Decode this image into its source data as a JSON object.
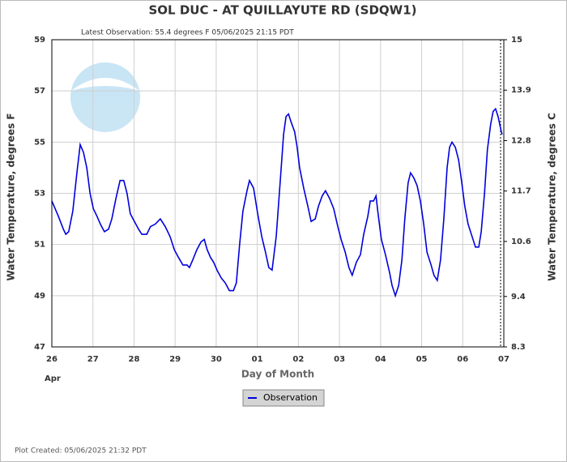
{
  "chart_data": {
    "type": "line",
    "title": "SOL DUC - AT QUILLAYUTE RD  (SDQW1)",
    "subtitle": "Latest Observation: 55.4 degrees F 05/06/2025 21:15 PDT",
    "ylabel": "Water Temperature, degrees F",
    "y2label": "Water Temperature, degrees C",
    "xlabel": "Day of Month",
    "x_annotation": "Apr",
    "footer": "Plot Created: 05/06/2025 21:32 PDT",
    "grid": true,
    "xlim": [
      0,
      11
    ],
    "xticks": [
      {
        "value": 0,
        "label": "26"
      },
      {
        "value": 1,
        "label": "27"
      },
      {
        "value": 2,
        "label": "28"
      },
      {
        "value": 3,
        "label": "29"
      },
      {
        "value": 4,
        "label": "30"
      },
      {
        "value": 5,
        "label": "01"
      },
      {
        "value": 6,
        "label": "02"
      },
      {
        "value": 7,
        "label": "03"
      },
      {
        "value": 8,
        "label": "04"
      },
      {
        "value": 9,
        "label": "05"
      },
      {
        "value": 10,
        "label": "06"
      },
      {
        "value": 11,
        "label": "07"
      }
    ],
    "ylim": [
      47,
      59
    ],
    "yticks": [
      47,
      49,
      51,
      53,
      55,
      57,
      59
    ],
    "y2lim": [
      8.3,
      15
    ],
    "y2ticks": [
      8.3,
      9.4,
      10.6,
      11.7,
      12.8,
      13.9,
      15
    ],
    "x": [
      0,
      0.16,
      0.28,
      0.34,
      0.41,
      0.51,
      0.61,
      0.69,
      0.77,
      0.85,
      0.93,
      1.01,
      1.1,
      1.18,
      1.28,
      1.38,
      1.46,
      1.56,
      1.66,
      1.75,
      1.83,
      1.91,
      2.01,
      2.11,
      2.19,
      2.31,
      2.4,
      2.52,
      2.64,
      2.76,
      2.88,
      2.98,
      3.08,
      3.19,
      3.29,
      3.35,
      3.43,
      3.53,
      3.63,
      3.71,
      3.78,
      3.86,
      3.94,
      4.02,
      4.12,
      4.22,
      4.32,
      4.42,
      4.49,
      4.57,
      4.65,
      4.75,
      4.81,
      4.91,
      5.01,
      5.11,
      5.2,
      5.28,
      5.36,
      5.46,
      5.56,
      5.64,
      5.7,
      5.76,
      5.82,
      5.91,
      5.97,
      6.03,
      6.13,
      6.23,
      6.31,
      6.41,
      6.49,
      6.58,
      6.66,
      6.76,
      6.86,
      6.96,
      7.04,
      7.14,
      7.23,
      7.31,
      7.41,
      7.51,
      7.59,
      7.69,
      7.75,
      7.83,
      7.89,
      7.94,
      8.02,
      8.12,
      8.22,
      8.28,
      8.36,
      8.44,
      8.52,
      8.59,
      8.67,
      8.73,
      8.81,
      8.89,
      8.97,
      9.05,
      9.13,
      9.23,
      9.3,
      9.38,
      9.46,
      9.54,
      9.62,
      9.68,
      9.74,
      9.82,
      9.9,
      9.97,
      10.05,
      10.13,
      10.23,
      10.31,
      10.39,
      10.45,
      10.53,
      10.6,
      10.68,
      10.74,
      10.8,
      10.86,
      10.94,
      10.96
    ],
    "series": [
      {
        "name": "Observation",
        "color": "#0000dd",
        "values": [
          52.7,
          52.1,
          51.6,
          51.4,
          51.5,
          52.3,
          53.8,
          54.9,
          54.6,
          54,
          53,
          52.4,
          52.1,
          51.8,
          51.5,
          51.6,
          52,
          52.8,
          53.5,
          53.5,
          53,
          52.2,
          51.9,
          51.6,
          51.4,
          51.4,
          51.7,
          51.8,
          52,
          51.7,
          51.3,
          50.8,
          50.5,
          50.2,
          50.2,
          50.1,
          50.4,
          50.8,
          51.1,
          51.2,
          50.8,
          50.5,
          50.3,
          50,
          49.7,
          49.5,
          49.2,
          49.2,
          49.5,
          51,
          52.3,
          53.1,
          53.5,
          53.2,
          52.2,
          51.3,
          50.7,
          50.1,
          50,
          51.3,
          53.5,
          55.3,
          56,
          56.1,
          55.8,
          55.4,
          54.8,
          54,
          53.2,
          52.5,
          51.9,
          52,
          52.5,
          52.9,
          53.1,
          52.8,
          52.4,
          51.7,
          51.2,
          50.7,
          50.1,
          49.8,
          50.3,
          50.6,
          51.4,
          52.1,
          52.7,
          52.7,
          52.9,
          52.2,
          51.2,
          50.6,
          49.9,
          49.4,
          49,
          49.4,
          50.4,
          52,
          53.4,
          53.8,
          53.6,
          53.3,
          52.7,
          51.8,
          50.7,
          50.2,
          49.8,
          49.6,
          50.4,
          52,
          54,
          54.8,
          55,
          54.8,
          54.3,
          53.5,
          52.5,
          51.8,
          51.3,
          50.9,
          50.9,
          51.5,
          53,
          54.7,
          55.7,
          56.2,
          56.3,
          56,
          55.4,
          55.3
        ]
      }
    ]
  }
}
